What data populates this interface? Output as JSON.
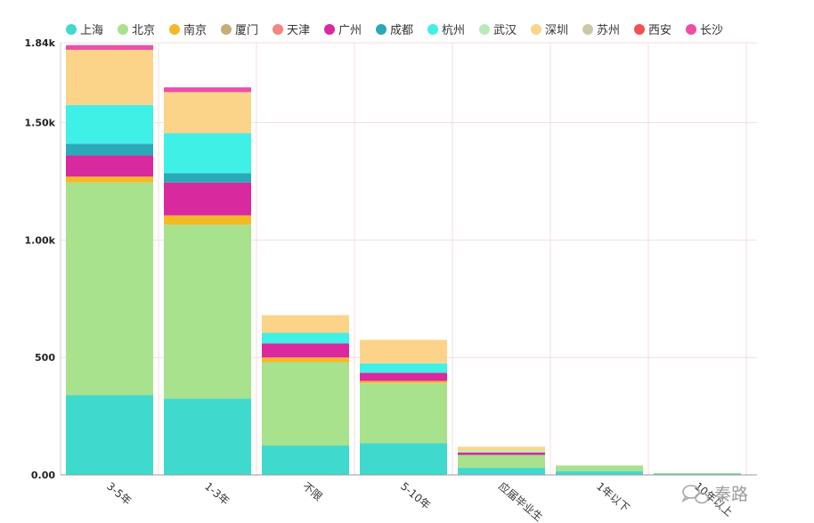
{
  "chart_data": {
    "type": "bar",
    "stacked": true,
    "title": "",
    "xlabel": "",
    "ylabel": "",
    "ylim": [
      0,
      1840
    ],
    "y_ticks": [
      0,
      500,
      1000,
      1500,
      1840
    ],
    "y_tick_labels": [
      "0.00",
      "500",
      "1.00k",
      "1.50k",
      "1.84k"
    ],
    "grid": true,
    "legend_position": "top",
    "categories": [
      "3-5年",
      "1-3年",
      "不限",
      "5-10年",
      "应届毕业生",
      "1年以下",
      "10年以上"
    ],
    "series": [
      {
        "name": "上海",
        "color": "#3fd9cd",
        "values": [
          340,
          325,
          125,
          135,
          30,
          15,
          5
        ]
      },
      {
        "name": "北京",
        "color": "#a8e28c",
        "values": [
          905,
          740,
          355,
          255,
          55,
          25,
          3
        ]
      },
      {
        "name": "南京",
        "color": "#f5b928",
        "values": [
          25,
          40,
          20,
          10,
          0,
          0,
          0
        ]
      },
      {
        "name": "厦门",
        "color": "#c8ac78",
        "values": [
          0,
          0,
          0,
          0,
          0,
          0,
          0
        ]
      },
      {
        "name": "天津",
        "color": "#f4857f",
        "values": [
          0,
          0,
          0,
          0,
          0,
          0,
          0
        ]
      },
      {
        "name": "广州",
        "color": "#d9299e",
        "values": [
          90,
          140,
          60,
          35,
          10,
          0,
          0
        ]
      },
      {
        "name": "成都",
        "color": "#2aa9b8",
        "values": [
          50,
          40,
          0,
          0,
          0,
          0,
          0
        ]
      },
      {
        "name": "杭州",
        "color": "#3ff0e6",
        "values": [
          165,
          170,
          45,
          40,
          0,
          0,
          0
        ]
      },
      {
        "name": "武汉",
        "color": "#b8eab8",
        "values": [
          0,
          0,
          0,
          0,
          10,
          0,
          0
        ]
      },
      {
        "name": "深圳",
        "color": "#fbd48a",
        "values": [
          235,
          175,
          75,
          100,
          15,
          0,
          0
        ]
      },
      {
        "name": "苏州",
        "color": "#c9c9a9",
        "values": [
          0,
          0,
          0,
          0,
          0,
          0,
          0
        ]
      },
      {
        "name": "西安",
        "color": "#f05252",
        "values": [
          0,
          0,
          0,
          0,
          0,
          0,
          0
        ]
      },
      {
        "name": "长沙",
        "color": "#ee4ea6",
        "values": [
          20,
          20,
          0,
          0,
          0,
          0,
          0
        ]
      }
    ]
  },
  "watermark": {
    "text": "秦路"
  }
}
